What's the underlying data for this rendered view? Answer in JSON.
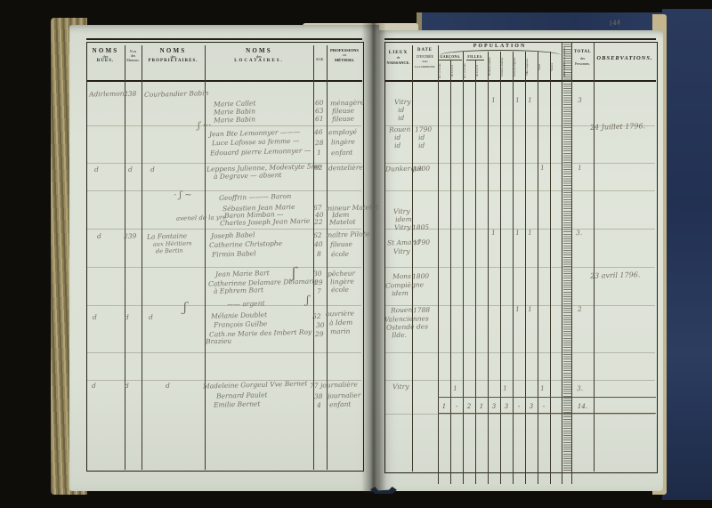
{
  "page_number": "144",
  "headers": {
    "rues": {
      "a": "NOMS",
      "b": "des",
      "c": "RUES."
    },
    "maisons": {
      "a": "N.os",
      "b": "des",
      "c": "Maisons."
    },
    "proprietaires": {
      "a": "NOMS",
      "b": "des",
      "c": "PROPRIÉTAIRES."
    },
    "locataires": {
      "a": "NOMS",
      "b": "des",
      "c": "LOCATAIRES."
    },
    "age": "AGE.",
    "professions": {
      "a": "PROFESSIONS",
      "b": "ou",
      "c": "MÉTIERS."
    },
    "lieux": {
      "a": "LIEUX",
      "b": "de",
      "c": "NAISSANCE."
    },
    "date": {
      "a": "DATE",
      "b": "D'ENTRÉE",
      "c": "dans",
      "d": "LA COMMUNE."
    },
    "population": "POPULATION",
    "garcons": "GARÇONS.",
    "filles": "FILLES.",
    "subcols": [
      "de 1 à 12 ans",
      "de 12 à 21",
      "de 1 à 12 ans",
      "de 12 à 21",
      "Hommes mariés",
      "Femmes mariées",
      "Garçons majeurs",
      "Filles majeures",
      "Veufs",
      "Veuves"
    ],
    "militaires": "MILITAIRES en activité.",
    "total": {
      "a": "TOTAL",
      "b": "des",
      "c": "Personnes."
    },
    "observations": "OBSERVATIONS."
  },
  "totals": {
    "values": [
      "1",
      "-",
      "2",
      "1",
      "3",
      "3",
      "-",
      "3",
      "-"
    ],
    "grand": "14."
  },
  "manuscript": {
    "lines": [
      {
        "n": "street-1",
        "t": "Adirlemont"
      },
      {
        "n": "house-1",
        "t": "238"
      },
      {
        "n": "prop-1",
        "t": "Courbandier Babin"
      },
      {
        "n": "tenant-1",
        "t": "Marie Callet"
      },
      {
        "n": "age-1",
        "t": "60"
      },
      {
        "n": "prof-1",
        "t": "ménagère"
      },
      {
        "n": "tenant-2",
        "t": "Marie Babin"
      },
      {
        "n": "age-2",
        "t": "63"
      },
      {
        "n": "prof-2",
        "t": "fileuse"
      },
      {
        "n": "tenant-3",
        "t": "Marie Babin"
      },
      {
        "n": "age-3",
        "t": "61"
      },
      {
        "n": "prof-3",
        "t": "fileuse"
      },
      {
        "n": "brace-1",
        "t": "ʃ ···"
      },
      {
        "n": "tenant-4",
        "t": "Jean Bte Lemonnyer ———"
      },
      {
        "n": "age-4",
        "t": "46"
      },
      {
        "n": "prof-4",
        "t": "employé"
      },
      {
        "n": "tenant-5",
        "t": "Luce Lafosse sa femme —"
      },
      {
        "n": "age-5",
        "t": "28"
      },
      {
        "n": "prof-5",
        "t": "lingère"
      },
      {
        "n": "tenant-6",
        "t": "Edouard pierre Lemonnyer —"
      },
      {
        "n": "age-6",
        "t": "1"
      },
      {
        "n": "prof-6",
        "t": "enfant"
      },
      {
        "n": "street-2",
        "t": "d"
      },
      {
        "n": "house-2",
        "t": "d"
      },
      {
        "n": "prop-2",
        "t": "d"
      },
      {
        "n": "tenant-7",
        "t": "Leppens Julienne, Modestyte 5me"
      },
      {
        "n": "age-7",
        "t": "62"
      },
      {
        "n": "prof-7",
        "t": "dentelière"
      },
      {
        "n": "tenant-7b",
        "t": "à Degrave — absent"
      },
      {
        "n": "brace-2",
        "t": "· ʃ ~"
      },
      {
        "n": "group-2",
        "t": "Geoffrin ——— Baron"
      },
      {
        "n": "note-2",
        "t": "avenel de la yre"
      },
      {
        "n": "tenant-8",
        "t": "Sébastien Jean Marie"
      },
      {
        "n": "age-8",
        "t": "67"
      },
      {
        "n": "prof-8",
        "t": "mineur Matelot"
      },
      {
        "n": "tenant-9",
        "t": "Baron Mimban —"
      },
      {
        "n": "age-9",
        "t": "40"
      },
      {
        "n": "prof-9",
        "t": "Idem"
      },
      {
        "n": "tenant-10",
        "t": "Charles Joseph Jean Marie"
      },
      {
        "n": "age-10",
        "t": "22"
      },
      {
        "n": "prof-10",
        "t": "Matelot"
      },
      {
        "n": "street-3",
        "t": "d"
      },
      {
        "n": "house-3",
        "t": "239"
      },
      {
        "n": "prop-3",
        "t": "La Fontaine"
      },
      {
        "n": "prop-3b",
        "t": "aux Héritiers"
      },
      {
        "n": "prop-3c",
        "t": "de Bertin"
      },
      {
        "n": "tenant-11",
        "t": "Joseph Babel"
      },
      {
        "n": "age-11",
        "t": "62"
      },
      {
        "n": "prof-11",
        "t": "maître Pilote"
      },
      {
        "n": "tenant-12",
        "t": "Catherine Christophe"
      },
      {
        "n": "age-12",
        "t": "40"
      },
      {
        "n": "prof-12",
        "t": "fileuse"
      },
      {
        "n": "tenant-13",
        "t": "Firmin Babel"
      },
      {
        "n": "age-13",
        "t": "8"
      },
      {
        "n": "prof-13",
        "t": "école"
      },
      {
        "n": "brace-3",
        "t": "ʃ"
      },
      {
        "n": "tenant-14",
        "t": "Jean Marie Bart"
      },
      {
        "n": "age-14",
        "t": "30"
      },
      {
        "n": "prof-14",
        "t": "pêcheur"
      },
      {
        "n": "tenant-15",
        "t": "Catherinne Delamare Delamarie"
      },
      {
        "n": "age-15",
        "t": "29"
      },
      {
        "n": "prof-15",
        "t": "lingère"
      },
      {
        "n": "tenant-16",
        "t": "à Ephrem Bart"
      },
      {
        "n": "age-16",
        "t": "7"
      },
      {
        "n": "prof-16",
        "t": "école"
      },
      {
        "n": "brace-3b",
        "t": "ʃ"
      },
      {
        "n": "note-3",
        "t": "—— argent"
      },
      {
        "n": "street-4",
        "t": "d"
      },
      {
        "n": "house-4",
        "t": "d"
      },
      {
        "n": "prop-4",
        "t": "d"
      },
      {
        "n": "brace-4",
        "t": "ʃ"
      },
      {
        "n": "tenant-17",
        "t": "Mélanie Doublet"
      },
      {
        "n": "age-17",
        "t": "52"
      },
      {
        "n": "prof-17",
        "t": "ouvrière"
      },
      {
        "n": "tenant-18",
        "t": "François Guilbe"
      },
      {
        "n": "age-18",
        "t": "30"
      },
      {
        "n": "prof-18",
        "t": "à Idem"
      },
      {
        "n": "tenant-19",
        "t": "Cath.ne Marie des Imbert Roy"
      },
      {
        "n": "age-19",
        "t": "29"
      },
      {
        "n": "prof-19",
        "t": "marin"
      },
      {
        "n": "tenant-19b",
        "t": "Brazieu"
      },
      {
        "n": "street-5",
        "t": "d"
      },
      {
        "n": "house-5",
        "t": "d"
      },
      {
        "n": "prop-5",
        "t": "d"
      },
      {
        "n": "tenant-20",
        "t": "Madeleine Gorgeul Vve Bernet"
      },
      {
        "n": "age-20",
        "t": "77"
      },
      {
        "n": "prof-20",
        "t": "journalière"
      },
      {
        "n": "tenant-21",
        "t": "Bernard Paulet"
      },
      {
        "n": "age-21",
        "t": "38"
      },
      {
        "n": "prof-21",
        "t": "journalier"
      },
      {
        "n": "tenant-22",
        "t": "Emilie Bernet"
      },
      {
        "n": "age-22",
        "t": "4"
      },
      {
        "n": "prof-22",
        "t": "enfant"
      },
      {
        "n": "birth-1",
        "t": "Vitry"
      },
      {
        "n": "birth-1b",
        "t": "id"
      },
      {
        "n": "birth-1c",
        "t": "id"
      },
      {
        "n": "birth-2",
        "t": "Rouen"
      },
      {
        "n": "birth-2b",
        "t": "id"
      },
      {
        "n": "birth-2c",
        "t": "id"
      },
      {
        "n": "date-2",
        "t": "1790"
      },
      {
        "n": "date-2b",
        "t": "id"
      },
      {
        "n": "date-2c",
        "t": "id"
      },
      {
        "n": "birth-3",
        "t": "Dunkerque"
      },
      {
        "n": "date-3",
        "t": "1800"
      },
      {
        "n": "birth-4",
        "t": "Vitry"
      },
      {
        "n": "birth-4b",
        "t": "idem"
      },
      {
        "n": "birth-4c",
        "t": "Vitry"
      },
      {
        "n": "date-4",
        "t": "1805"
      },
      {
        "n": "birth-5",
        "t": "St Amand"
      },
      {
        "n": "birth-5b",
        "t": "Vitry"
      },
      {
        "n": "date-5",
        "t": "1790"
      },
      {
        "n": "birth-6",
        "t": "Mons"
      },
      {
        "n": "birth-6b",
        "t": "Compiègne"
      },
      {
        "n": "birth-6c",
        "t": "idem"
      },
      {
        "n": "date-6",
        "t": "1800"
      },
      {
        "n": "birth-7",
        "t": "Rouen"
      },
      {
        "n": "birth-7b",
        "t": "Valenciennes"
      },
      {
        "n": "birth-7c",
        "t": "Ostende des"
      },
      {
        "n": "birth-7d",
        "t": "Ilde."
      },
      {
        "n": "date-7",
        "t": "1788"
      },
      {
        "n": "birth-8",
        "t": "Vitry"
      },
      {
        "n": "obs-1",
        "t": "24 Juillet 1796."
      },
      {
        "n": "obs-2",
        "t": "23 avril 1796."
      },
      {
        "n": "mark-1a",
        "t": "1"
      },
      {
        "n": "mark-1b",
        "t": "1"
      },
      {
        "n": "mark-1c",
        "t": "1"
      },
      {
        "n": "rowtotal-1",
        "t": "3"
      },
      {
        "n": "mark-2",
        "t": "1"
      },
      {
        "n": "rowtotal-2",
        "t": "1"
      },
      {
        "n": "mark-3a",
        "t": "1"
      },
      {
        "n": "mark-3b",
        "t": "1"
      },
      {
        "n": "mark-3c",
        "t": "1"
      },
      {
        "n": "rowtotal-3",
        "t": "3."
      },
      {
        "n": "mark-4a",
        "t": "1"
      },
      {
        "n": "mark-4b",
        "t": "1"
      },
      {
        "n": "rowtotal-4",
        "t": "2"
      },
      {
        "n": "mark-5a",
        "t": "1"
      },
      {
        "n": "mark-5b",
        "t": "1"
      },
      {
        "n": "mark-5c",
        "t": "1"
      },
      {
        "n": "rowtotal-5",
        "t": "3."
      }
    ]
  }
}
